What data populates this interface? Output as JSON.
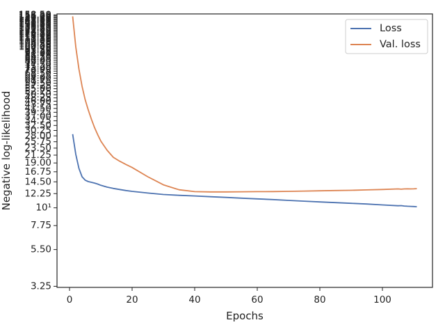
{
  "chart_data": {
    "type": "line",
    "title": "",
    "xlabel": "Epochs",
    "ylabel": "Negative log-likelihood",
    "yscale": "log",
    "xlim": [
      -4,
      116
    ],
    "ylim": [
      3.2,
      160.5
    ],
    "x_ticks": [
      0,
      20,
      40,
      60,
      80,
      100
    ],
    "y_ticks": [
      {
        "value": 3.25,
        "label": "3.25"
      },
      {
        "value": 5.5,
        "label": "5.50"
      },
      {
        "value": 7.75,
        "label": "7.75"
      },
      {
        "value": 10,
        "label": "10¹"
      },
      {
        "value": 12.25,
        "label": "12.25"
      },
      {
        "value": 14.5,
        "label": "14.50"
      },
      {
        "value": 16.75,
        "label": "16.75"
      },
      {
        "value": 19.0,
        "label": "19.00"
      },
      {
        "value": 21.25,
        "label": "21.25"
      },
      {
        "value": 23.5,
        "label": "23.50"
      },
      {
        "value": 25.75,
        "label": "25.75"
      },
      {
        "value": 28.0,
        "label": "28.00"
      },
      {
        "value": 30.25,
        "label": "30.25"
      },
      {
        "value": 32.5,
        "label": "32.50"
      },
      {
        "value": 34.75,
        "label": "34.75"
      },
      {
        "value": 37.0,
        "label": "37.00"
      },
      {
        "value": 39.25,
        "label": "39.25"
      },
      {
        "value": 41.5,
        "label": "41.50"
      },
      {
        "value": 43.75,
        "label": "43.75"
      },
      {
        "value": 46.0,
        "label": "46.00"
      },
      {
        "value": 48.25,
        "label": "48.25"
      },
      {
        "value": 50.5,
        "label": "50.50"
      },
      {
        "value": 52.75,
        "label": "52.75"
      },
      {
        "value": 55.0,
        "label": "55.00"
      },
      {
        "value": 57.25,
        "label": "57.25"
      },
      {
        "value": 59.5,
        "label": "59.50"
      },
      {
        "value": 61.75,
        "label": "61.75"
      },
      {
        "value": 64.0,
        "label": "64.00"
      },
      {
        "value": 66.25,
        "label": "66.25"
      },
      {
        "value": 68.5,
        "label": "68.50"
      },
      {
        "value": 70.75,
        "label": "70.75"
      },
      {
        "value": 73.0,
        "label": "73.00"
      },
      {
        "value": 75.25,
        "label": "75.25"
      },
      {
        "value": 77.5,
        "label": "77.50"
      },
      {
        "value": 79.75,
        "label": "79.75"
      },
      {
        "value": 82.0,
        "label": "82.00"
      },
      {
        "value": 84.25,
        "label": "84.25"
      },
      {
        "value": 86.5,
        "label": "86.50"
      },
      {
        "value": 88.75,
        "label": "88.75"
      },
      {
        "value": 91.0,
        "label": "91.00"
      },
      {
        "value": 93.25,
        "label": "93.25"
      },
      {
        "value": 95.5,
        "label": "95.50"
      },
      {
        "value": 97.75,
        "label": "97.75"
      },
      {
        "value": 100.0,
        "label": "100.00"
      },
      {
        "value": 102.25,
        "label": "102.25"
      },
      {
        "value": 104.5,
        "label": "104.50"
      },
      {
        "value": 106.75,
        "label": "106.75"
      },
      {
        "value": 109.0,
        "label": "109.00"
      },
      {
        "value": 111.25,
        "label": "111.25"
      },
      {
        "value": 113.5,
        "label": "113.50"
      },
      {
        "value": 115.75,
        "label": "115.75"
      },
      {
        "value": 118.0,
        "label": "118.00"
      },
      {
        "value": 120.25,
        "label": "120.25"
      },
      {
        "value": 122.5,
        "label": "122.50"
      },
      {
        "value": 124.75,
        "label": "124.75"
      },
      {
        "value": 127.0,
        "label": "127.00"
      },
      {
        "value": 129.25,
        "label": "129.25"
      },
      {
        "value": 131.5,
        "label": "131.50"
      },
      {
        "value": 133.75,
        "label": "133.75"
      },
      {
        "value": 136.0,
        "label": "136.00"
      },
      {
        "value": 138.25,
        "label": "138.25"
      },
      {
        "value": 140.5,
        "label": "140.50"
      },
      {
        "value": 142.75,
        "label": "142.75"
      },
      {
        "value": 145.0,
        "label": "145.00"
      },
      {
        "value": 147.25,
        "label": "147.25"
      },
      {
        "value": 149.5,
        "label": "149.50"
      },
      {
        "value": 151.75,
        "label": "151.75"
      },
      {
        "value": 154.0,
        "label": "154.00"
      },
      {
        "value": 156.25,
        "label": "156.25"
      },
      {
        "value": 158.5,
        "label": "158.50"
      }
    ],
    "legend": {
      "placement": "upper right"
    },
    "grid": false,
    "series": [
      {
        "name": "Loss",
        "color": "#4c72b0",
        "x": [
          1,
          2,
          3,
          4,
          5,
          6,
          7,
          8,
          9,
          10,
          12,
          14,
          16,
          18,
          20,
          25,
          30,
          35,
          40,
          45,
          50,
          55,
          60,
          65,
          70,
          75,
          80,
          85,
          90,
          95,
          100,
          105,
          106,
          107,
          108,
          109,
          110,
          111
        ],
        "y": [
          28.7,
          21.5,
          17.6,
          15.6,
          14.85,
          14.55,
          14.4,
          14.25,
          14.05,
          13.8,
          13.45,
          13.2,
          13.0,
          12.8,
          12.65,
          12.35,
          12.1,
          11.95,
          11.85,
          11.72,
          11.6,
          11.48,
          11.36,
          11.25,
          11.12,
          11.0,
          10.88,
          10.77,
          10.66,
          10.55,
          10.42,
          10.3,
          10.32,
          10.25,
          10.22,
          10.2,
          10.18,
          10.15
        ]
      },
      {
        "name": "Val. loss",
        "color": "#dd8452",
        "x": [
          1,
          2,
          3,
          4,
          5,
          6,
          7,
          8,
          9,
          10,
          12,
          14,
          16,
          18,
          20,
          25,
          30,
          35,
          40,
          45,
          50,
          55,
          60,
          65,
          70,
          75,
          80,
          85,
          90,
          95,
          100,
          105,
          106,
          107,
          108,
          109,
          110,
          111
        ],
        "y": [
          155.0,
          100.0,
          73.0,
          57.0,
          47.0,
          40.5,
          35.5,
          31.5,
          28.5,
          26.0,
          22.8,
          20.6,
          19.5,
          18.6,
          17.8,
          15.6,
          13.9,
          12.95,
          12.6,
          12.55,
          12.55,
          12.58,
          12.6,
          12.62,
          12.65,
          12.7,
          12.75,
          12.8,
          12.85,
          12.92,
          13.0,
          13.1,
          13.05,
          13.1,
          13.12,
          13.1,
          13.12,
          13.15
        ]
      }
    ]
  }
}
